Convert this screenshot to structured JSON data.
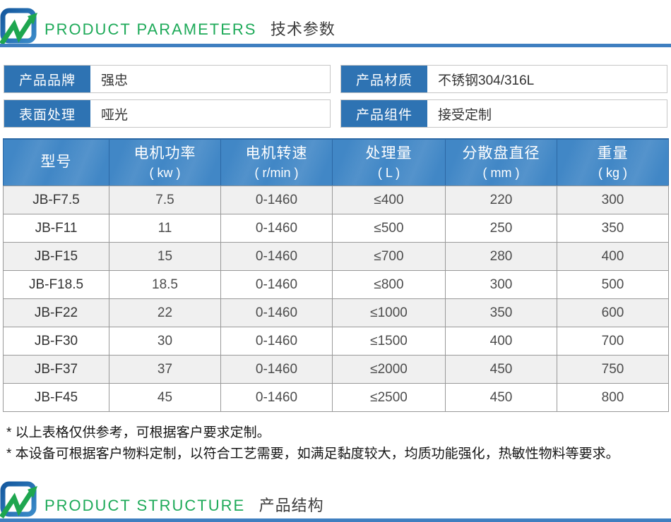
{
  "sections": {
    "parameters": {
      "title_en": "PRODUCT PARAMETERS",
      "title_zh": "技术参数"
    },
    "structure": {
      "title_en": "PRODUCT STRUCTURE",
      "title_zh": "产品结构"
    }
  },
  "info_fields": [
    {
      "label": "产品品牌",
      "value": "强忠"
    },
    {
      "label": "产品材质",
      "value": "不锈钢304/316L"
    },
    {
      "label": "表面处理",
      "value": "哑光"
    },
    {
      "label": "产品组件",
      "value": "接受定制"
    }
  ],
  "table": {
    "columns": [
      {
        "name": "型号",
        "unit": ""
      },
      {
        "name": "电机功率",
        "unit": "( kw )"
      },
      {
        "name": "电机转速",
        "unit": "( r/min )"
      },
      {
        "name": "处理量",
        "unit": "( L )"
      },
      {
        "name": "分散盘直径",
        "unit": "( mm )"
      },
      {
        "name": "重量",
        "unit": "( kg )"
      }
    ],
    "rows": [
      [
        "JB-F7.5",
        "7.5",
        "0-1460",
        "≤400",
        "220",
        "300"
      ],
      [
        "JB-F11",
        "11",
        "0-1460",
        "≤500",
        "250",
        "350"
      ],
      [
        "JB-F15",
        "15",
        "0-1460",
        "≤700",
        "280",
        "400"
      ],
      [
        "JB-F18.5",
        "18.5",
        "0-1460",
        "≤800",
        "300",
        "500"
      ],
      [
        "JB-F22",
        "22",
        "0-1460",
        "≤1000",
        "350",
        "600"
      ],
      [
        "JB-F30",
        "30",
        "0-1460",
        "≤1500",
        "400",
        "700"
      ],
      [
        "JB-F37",
        "37",
        "0-1460",
        "≤2000",
        "450",
        "750"
      ],
      [
        "JB-F45",
        "45",
        "0-1460",
        "≤2500",
        "450",
        "800"
      ]
    ]
  },
  "notes": [
    "* 以上表格仅供参考，可根据客户要求定制。",
    "* 本设备可根据客户物料定制，以符合工艺需要，如满足黏度较大，均质功能强化，热敏性物料等要求。"
  ],
  "icons": {
    "brand_logo": "blue-square-green-arrow-logo"
  },
  "colors": {
    "accent_green": "#1eaa59",
    "accent_blue_line": "#3f7fc0",
    "label_blue": "#2e73b3",
    "table_header_blue": "#4187c6",
    "stripe_gray": "#f0f0f0"
  }
}
